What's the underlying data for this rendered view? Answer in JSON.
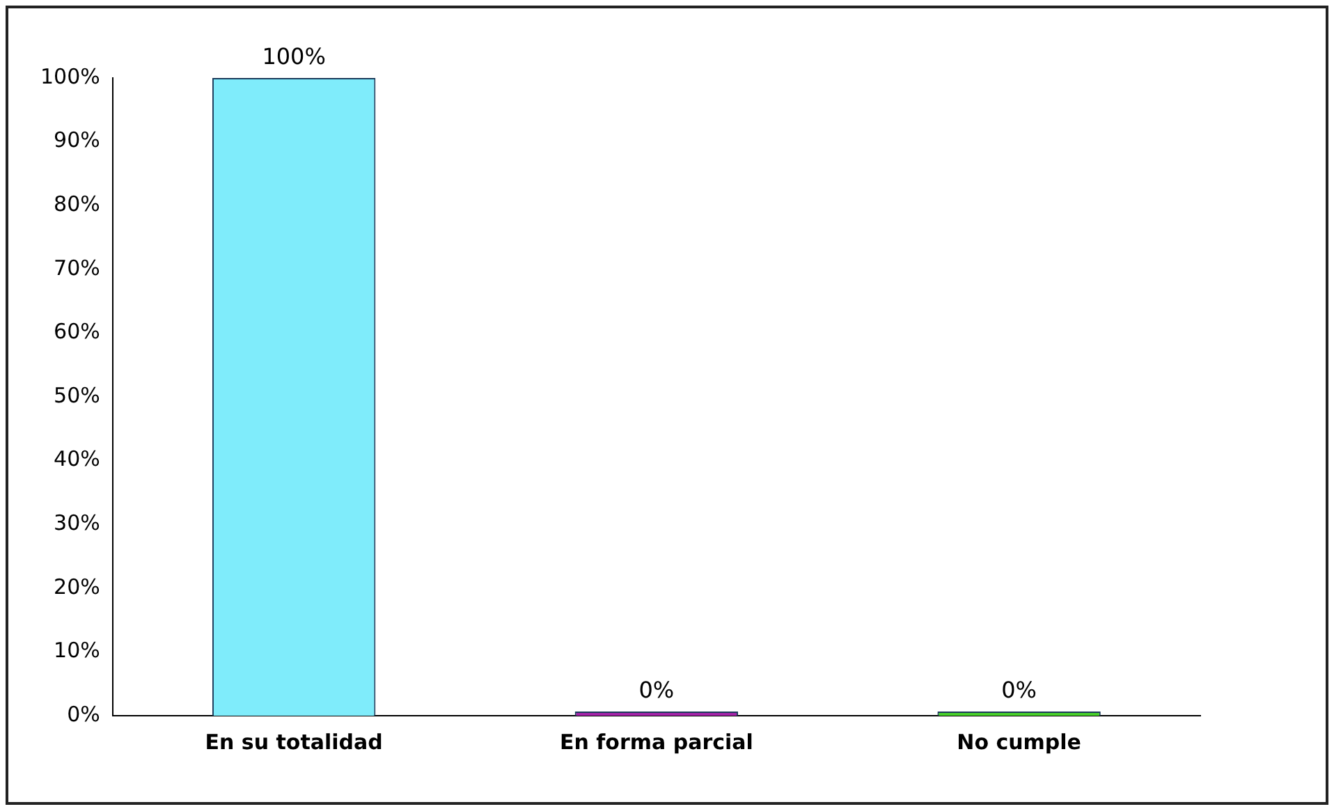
{
  "chart_data": {
    "type": "bar",
    "categories": [
      "En su totalidad",
      "En forma parcial",
      "No cumple"
    ],
    "values": [
      100,
      0,
      0
    ],
    "colors": [
      "#7fecfb",
      "#a524a8",
      "#48d02a"
    ],
    "value_labels": [
      "100%",
      "0%",
      "0%"
    ],
    "ylim": [
      0,
      100
    ],
    "yticks": [
      {
        "value": 0,
        "label": "0%"
      },
      {
        "value": 10,
        "label": "10%"
      },
      {
        "value": 20,
        "label": "20%"
      },
      {
        "value": 30,
        "label": "30%"
      },
      {
        "value": 40,
        "label": "40%"
      },
      {
        "value": 50,
        "label": "50%"
      },
      {
        "value": 60,
        "label": "60%"
      },
      {
        "value": 70,
        "label": "70%"
      },
      {
        "value": 80,
        "label": "80%"
      },
      {
        "value": 90,
        "label": "90%"
      },
      {
        "value": 100,
        "label": "100%"
      }
    ],
    "grid": false,
    "legend": false
  }
}
